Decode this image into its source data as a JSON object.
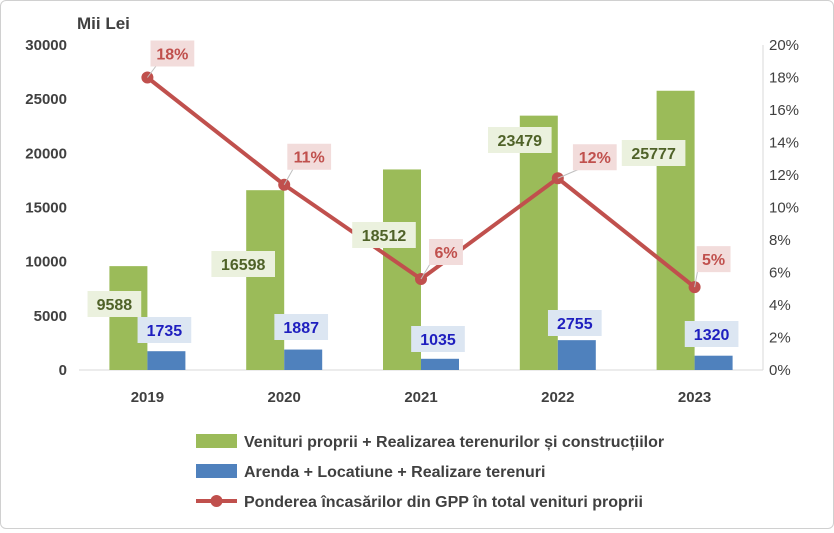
{
  "chart_data": {
    "type": "bar",
    "unit_label": "Mii Lei",
    "categories": [
      "2019",
      "2020",
      "2021",
      "2022",
      "2023"
    ],
    "series": [
      {
        "name": "Venituri proprii + Realizarea terenurilor și construcțiilor",
        "type": "bar",
        "axis": "left",
        "color": "#9bbb59",
        "values": [
          9588,
          16598,
          18512,
          23479,
          25777
        ],
        "data_labels": [
          "9588",
          "16598",
          "18512",
          "23479",
          "25777"
        ],
        "label_color": "#4f6228",
        "label_bg": "#ebf1de"
      },
      {
        "name": "Arenda + Locatiune + Realizare terenuri",
        "type": "bar",
        "axis": "left",
        "color": "#4f81bd",
        "values": [
          1735,
          1887,
          1035,
          2755,
          1320
        ],
        "data_labels": [
          "1735",
          "1887",
          "1035",
          "2755",
          "1320"
        ],
        "label_color": "#1f1fbf",
        "label_bg": "#dce6f2"
      },
      {
        "name": "Ponderea încasărilor din GPP în total venituri proprii",
        "type": "line",
        "axis": "right",
        "color": "#c0504d",
        "values": [
          0.18,
          0.114,
          0.056,
          0.118,
          0.051
        ],
        "data_labels": [
          "18%",
          "11%",
          "6%",
          "12%",
          "5%"
        ],
        "label_color": "#c0504d",
        "label_bg": "#f2dcdb"
      }
    ],
    "y_left": {
      "min": 0,
      "max": 30000,
      "step": 5000,
      "ticks": [
        "0",
        "5000",
        "10000",
        "15000",
        "20000",
        "25000",
        "30000"
      ]
    },
    "y_right": {
      "min": 0,
      "max": 0.2,
      "step": 0.02,
      "ticks": [
        "0%",
        "2%",
        "4%",
        "6%",
        "8%",
        "10%",
        "12%",
        "14%",
        "16%",
        "18%",
        "20%"
      ]
    },
    "grid": false,
    "legend_position": "bottom"
  }
}
